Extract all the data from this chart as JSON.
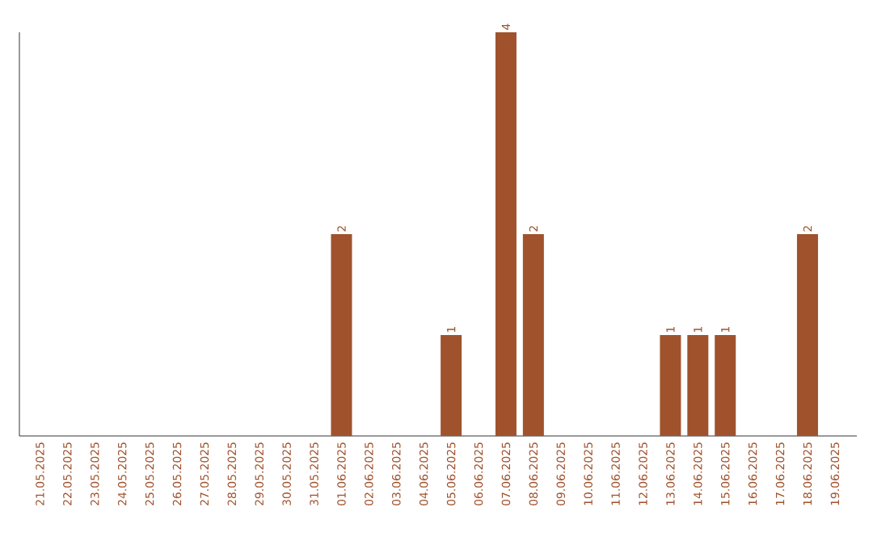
{
  "chart_data": {
    "type": "bar",
    "categories": [
      "21.05.2025",
      "22.05.2025",
      "23.05.2025",
      "24.05.2025",
      "25.05.2025",
      "26.05.2025",
      "27.05.2025",
      "28.05.2025",
      "29.05.2025",
      "30.05.2025",
      "31.05.2025",
      "01.06.2025",
      "02.06.2025",
      "03.06.2025",
      "04.06.2025",
      "05.06.2025",
      "06.06.2025",
      "07.06.2025",
      "08.06.2025",
      "09.06.2025",
      "10.06.2025",
      "11.06.2025",
      "12.06.2025",
      "13.06.2025",
      "14.06.2025",
      "15.06.2025",
      "16.06.2025",
      "17.06.2025",
      "18.06.2025",
      "19.06.2025"
    ],
    "values": [
      0,
      0,
      0,
      0,
      0,
      0,
      0,
      0,
      0,
      0,
      0,
      2,
      0,
      0,
      0,
      1,
      0,
      4,
      2,
      0,
      0,
      0,
      0,
      1,
      1,
      1,
      0,
      0,
      2,
      0
    ],
    "value_labels": [
      null,
      null,
      null,
      null,
      null,
      null,
      null,
      null,
      null,
      null,
      null,
      "2",
      null,
      null,
      null,
      "1",
      null,
      "4",
      "2",
      null,
      null,
      null,
      null,
      "1",
      "1",
      "1",
      null,
      null,
      "2",
      null
    ],
    "color": "#a0522d",
    "ylim": [
      0,
      4
    ],
    "tick_labels": "x"
  }
}
